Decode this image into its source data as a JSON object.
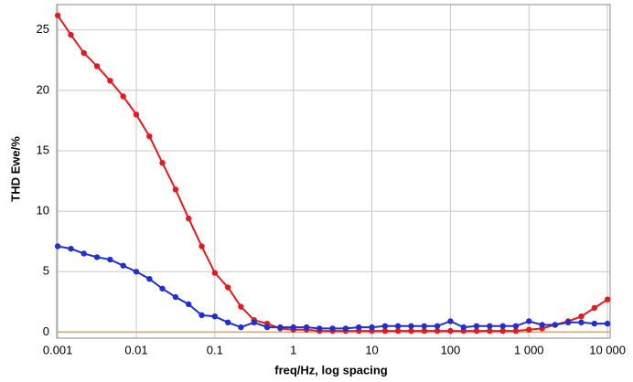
{
  "chart_data": {
    "type": "line",
    "xlabel": "freq/Hz, log spacing",
    "ylabel": "THD Ewe/%",
    "ylabel_color": "#1f2fd0",
    "xscale": "log",
    "grid": true,
    "zero_line_color": "#f0a040",
    "xlim": [
      0.00097,
      10800
    ],
    "ylim": [
      -0.5,
      27.1
    ],
    "xticks": [
      0.001,
      0.01,
      0.1,
      1,
      10,
      100,
      {
        "value": 1000,
        "label": "1 000"
      },
      {
        "value": 10000,
        "label": "10 000"
      }
    ],
    "yticks": [
      0,
      5,
      10,
      15,
      20,
      25
    ],
    "x": [
      0.001,
      0.00147,
      0.00215,
      0.00316,
      0.00464,
      0.00681,
      0.01,
      0.0147,
      0.0215,
      0.0316,
      0.0464,
      0.0681,
      0.1,
      0.147,
      0.215,
      0.316,
      0.464,
      0.681,
      1,
      1.47,
      2.15,
      3.16,
      4.64,
      6.81,
      10,
      14.7,
      21.5,
      31.6,
      46.4,
      68.1,
      100,
      147,
      215,
      316,
      464,
      681,
      1000,
      1470,
      2150,
      3160,
      4640,
      6810,
      10000
    ],
    "series": [
      {
        "color": "#e8191e",
        "values": [
          26.2,
          24.6,
          23.1,
          22.0,
          20.8,
          19.5,
          18.0,
          16.2,
          14.0,
          11.8,
          9.4,
          7.1,
          4.9,
          3.7,
          2.1,
          1.0,
          0.7,
          0.3,
          0.2,
          0.2,
          0.1,
          0.1,
          0.1,
          0.1,
          0.1,
          0.1,
          0.1,
          0.1,
          0.1,
          0.1,
          0.1,
          0.1,
          0.1,
          0.1,
          0.1,
          0.1,
          0.2,
          0.3,
          0.6,
          0.9,
          1.3,
          2.0,
          2.7
        ]
      },
      {
        "color": "#1f2fd0",
        "values": [
          7.1,
          6.9,
          6.5,
          6.2,
          6.0,
          5.5,
          5.0,
          4.4,
          3.6,
          2.9,
          2.3,
          1.4,
          1.3,
          0.8,
          0.4,
          0.8,
          0.4,
          0.4,
          0.4,
          0.4,
          0.3,
          0.3,
          0.3,
          0.4,
          0.4,
          0.5,
          0.5,
          0.5,
          0.5,
          0.5,
          0.9,
          0.4,
          0.5,
          0.5,
          0.5,
          0.5,
          0.9,
          0.6,
          0.6,
          0.8,
          0.8,
          0.7,
          0.7
        ]
      }
    ]
  }
}
